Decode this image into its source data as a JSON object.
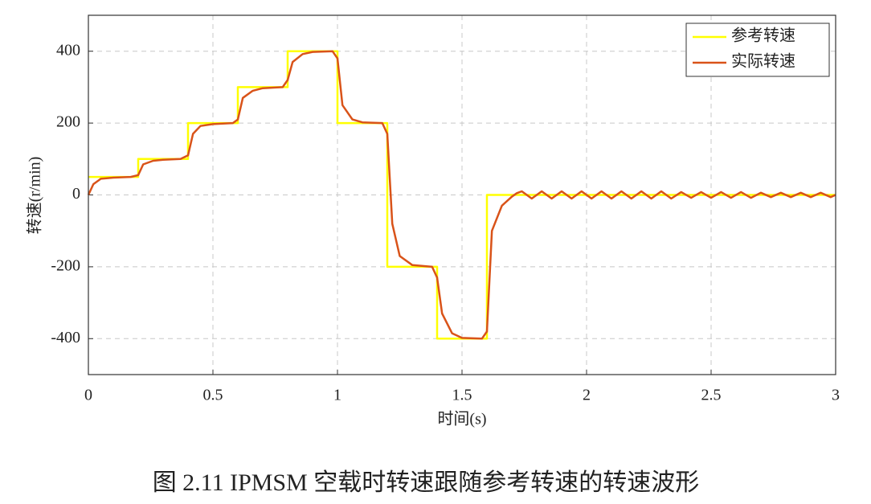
{
  "chart_data": {
    "type": "line",
    "caption": "图 2.11 IPMSM 空载时转速跟随参考转速的转速波形",
    "xlabel": "时间(s)",
    "ylabel": "转速(r/min)",
    "xlim": [
      0,
      3
    ],
    "ylim": [
      -500,
      500
    ],
    "xticks": [
      0,
      0.5,
      1,
      1.5,
      2,
      2.5,
      3
    ],
    "yticks": [
      -400,
      -200,
      0,
      200,
      400
    ],
    "grid": true,
    "legend": "upper right",
    "series": [
      {
        "name": "参考转速",
        "color": "#ffff00",
        "x": [
          0,
          0.2,
          0.2,
          0.4,
          0.4,
          0.6,
          0.6,
          0.8,
          0.8,
          1.0,
          1.0,
          1.2,
          1.2,
          1.4,
          1.4,
          1.6,
          1.6,
          3.0
        ],
        "values": [
          50,
          50,
          100,
          100,
          200,
          200,
          300,
          300,
          400,
          400,
          200,
          200,
          -200,
          -200,
          -400,
          -400,
          0,
          0
        ]
      },
      {
        "name": "实际转速",
        "color": "#d95319",
        "x": [
          0,
          0.02,
          0.05,
          0.1,
          0.17,
          0.2,
          0.22,
          0.26,
          0.3,
          0.37,
          0.4,
          0.42,
          0.45,
          0.5,
          0.58,
          0.6,
          0.62,
          0.66,
          0.7,
          0.78,
          0.8,
          0.82,
          0.86,
          0.9,
          0.98,
          1.0,
          1.02,
          1.06,
          1.1,
          1.18,
          1.2,
          1.22,
          1.25,
          1.3,
          1.38,
          1.4,
          1.42,
          1.46,
          1.5,
          1.58,
          1.6,
          1.62,
          1.66,
          1.7,
          1.72,
          1.74,
          1.78,
          1.82,
          1.86,
          1.9,
          1.94,
          1.98,
          2.02,
          2.06,
          2.1,
          2.14,
          2.18,
          2.22,
          2.26,
          2.3,
          2.34,
          2.38,
          2.42,
          2.46,
          2.5,
          2.54,
          2.58,
          2.62,
          2.66,
          2.7,
          2.74,
          2.78,
          2.82,
          2.86,
          2.9,
          2.94,
          2.98,
          3.0
        ],
        "values": [
          0,
          30,
          45,
          48,
          50,
          55,
          85,
          95,
          98,
          100,
          110,
          170,
          192,
          197,
          200,
          210,
          270,
          290,
          297,
          300,
          320,
          370,
          392,
          398,
          400,
          380,
          250,
          210,
          202,
          200,
          170,
          -80,
          -170,
          -195,
          -200,
          -230,
          -330,
          -385,
          -398,
          -400,
          -380,
          -100,
          -30,
          -5,
          5,
          10,
          -10,
          10,
          -10,
          10,
          -10,
          10,
          -10,
          10,
          -10,
          10,
          -10,
          10,
          -10,
          10,
          -10,
          8,
          -8,
          8,
          -8,
          8,
          -8,
          8,
          -8,
          6,
          -6,
          6,
          -6,
          6,
          -6,
          6,
          -6,
          0
        ]
      }
    ]
  }
}
